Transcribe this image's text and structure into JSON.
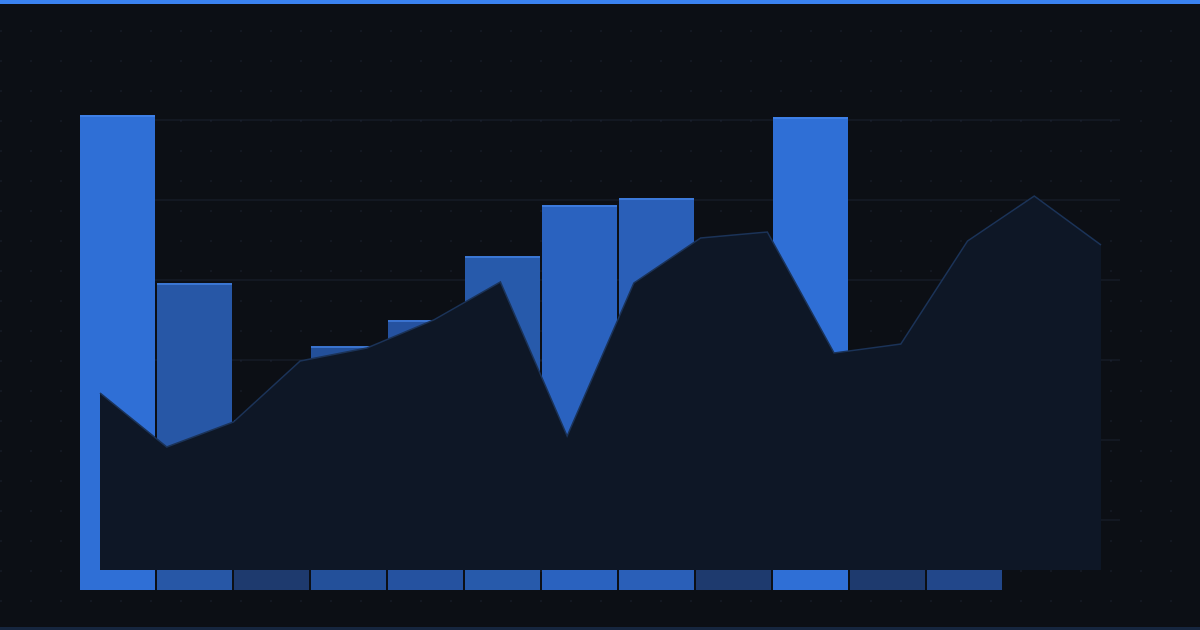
{
  "chart_data": [
    {
      "type": "bar",
      "categories": [
        null,
        null,
        null,
        null,
        null,
        null,
        null,
        null,
        null,
        null,
        null,
        null
      ],
      "values": [
        121.25,
        79.25,
        45,
        63.5,
        70,
        86,
        98.75,
        100.5,
        50,
        120.75,
        55,
        60
      ],
      "colors": [
        "#2f6fd6",
        "#2757a6",
        "#1e3a6e",
        "#23509a",
        "#2552a0",
        "#275aab",
        "#2a62bf",
        "#2a5fb8",
        "#1e3a6e",
        "#2f6fd6",
        "#1e3a6e",
        "#22478a"
      ],
      "ylim": [
        2.5,
        125
      ],
      "yticks": [
        20,
        40,
        60,
        80,
        100,
        120
      ],
      "grid": true
    },
    {
      "type": "area",
      "categories": [
        null,
        null,
        null,
        null,
        null,
        null,
        null,
        null,
        null,
        null,
        null,
        null,
        null,
        null,
        null,
        null
      ],
      "values": [
        51.75,
        38.25,
        44.5,
        59.75,
        63,
        70,
        79.5,
        41,
        79.25,
        90.5,
        92,
        61.75,
        64,
        89.75,
        101,
        88.75
      ],
      "color": "#0e1726",
      "line_color": "#1b3358",
      "ylim": [
        2.5,
        125
      ]
    }
  ]
}
